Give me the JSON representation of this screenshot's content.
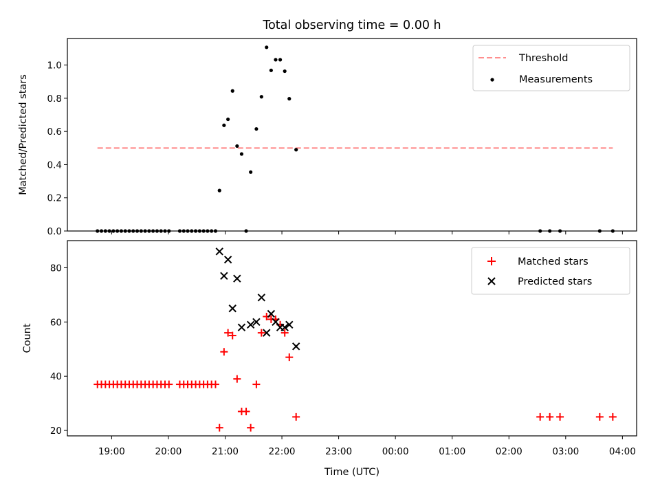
{
  "chart_data": [
    {
      "type": "scatter",
      "title": "Total observing time = 0.00 h",
      "xlabel": "",
      "ylabel": "Matched/Predicted stars",
      "ylim": [
        0,
        1.16
      ],
      "yticks": [
        0.0,
        0.2,
        0.4,
        0.6,
        0.8,
        1.0
      ],
      "ytick_labels": [
        "0.0",
        "0.2",
        "0.4",
        "0.6",
        "0.8",
        "1.0"
      ],
      "legend_position": "top-right",
      "threshold": {
        "name": "Threshold",
        "y": 0.5,
        "x_start": 18.75,
        "x_end": 27.83,
        "color": "#ff7f7f",
        "style": "dashed"
      },
      "series": [
        {
          "name": "Measurements",
          "marker": "dot",
          "color": "#000000",
          "x": [
            18.75,
            18.82,
            18.89,
            18.96,
            19.03,
            19.1,
            19.17,
            19.24,
            19.31,
            19.38,
            19.45,
            19.52,
            19.59,
            19.66,
            19.73,
            19.8,
            19.87,
            19.94,
            20.01,
            20.2,
            20.27,
            20.34,
            20.41,
            20.48,
            20.55,
            20.62,
            20.69,
            20.76,
            20.83,
            20.9,
            20.98,
            21.05,
            21.13,
            21.21,
            21.29,
            21.37,
            21.45,
            21.55,
            21.64,
            21.73,
            21.81,
            21.89,
            21.97,
            22.05,
            22.13,
            22.25,
            26.55,
            26.72,
            26.9,
            27.6,
            27.83
          ],
          "y": [
            0,
            0,
            0,
            0,
            0,
            0,
            0,
            0,
            0,
            0,
            0,
            0,
            0,
            0,
            0,
            0,
            0,
            0,
            0,
            0,
            0,
            0,
            0,
            0,
            0,
            0,
            0,
            0,
            0,
            0.244,
            0.637,
            0.673,
            0.844,
            0.512,
            0.464,
            0,
            0.355,
            0.615,
            0.809,
            1.107,
            0.968,
            1.032,
            1.032,
            0.963,
            0.797,
            0.49,
            0,
            0,
            0,
            0,
            0
          ]
        }
      ]
    },
    {
      "type": "scatter",
      "title": "",
      "xlabel": "Time (UTC)",
      "ylabel": "Count",
      "ylim": [
        18,
        90
      ],
      "yticks": [
        20,
        40,
        60,
        80
      ],
      "ytick_labels": [
        "20",
        "40",
        "60",
        "80"
      ],
      "xlim": [
        18.22,
        28.25
      ],
      "xticks": [
        19,
        20,
        21,
        22,
        23,
        24,
        25,
        26,
        27,
        28
      ],
      "xtick_labels": [
        "19:00",
        "20:00",
        "21:00",
        "22:00",
        "23:00",
        "00:00",
        "01:00",
        "02:00",
        "03:00",
        "04:00"
      ],
      "legend_position": "top-right",
      "series": [
        {
          "name": "Matched stars",
          "marker": "plus",
          "color": "#ff0000",
          "x": [
            18.75,
            18.82,
            18.89,
            18.96,
            19.03,
            19.1,
            19.17,
            19.24,
            19.31,
            19.38,
            19.45,
            19.52,
            19.59,
            19.66,
            19.73,
            19.8,
            19.87,
            19.94,
            20.01,
            20.2,
            20.27,
            20.34,
            20.41,
            20.48,
            20.55,
            20.62,
            20.69,
            20.76,
            20.83,
            20.9,
            20.98,
            21.05,
            21.13,
            21.21,
            21.29,
            21.37,
            21.45,
            21.55,
            21.64,
            21.73,
            21.81,
            21.89,
            21.97,
            22.05,
            22.13,
            22.25,
            26.55,
            26.72,
            26.9,
            27.6,
            27.83
          ],
          "y": [
            37,
            37,
            37,
            37,
            37,
            37,
            37,
            37,
            37,
            37,
            37,
            37,
            37,
            37,
            37,
            37,
            37,
            37,
            37,
            37,
            37,
            37,
            37,
            37,
            37,
            37,
            37,
            37,
            37,
            21,
            49,
            56,
            55,
            39,
            27,
            27,
            21,
            37,
            56,
            62,
            61,
            61,
            59,
            56,
            47,
            25,
            25,
            25,
            25,
            25,
            25
          ]
        },
        {
          "name": "Predicted stars",
          "marker": "x",
          "color": "#000000",
          "x": [
            20.9,
            20.98,
            21.05,
            21.13,
            21.21,
            21.29,
            21.45,
            21.55,
            21.64,
            21.73,
            21.81,
            21.89,
            21.97,
            22.05,
            22.13,
            22.25
          ],
          "y": [
            86,
            77,
            83,
            65,
            76,
            58,
            59,
            60,
            69,
            56,
            63,
            60,
            58,
            58,
            59,
            51
          ]
        }
      ]
    }
  ]
}
